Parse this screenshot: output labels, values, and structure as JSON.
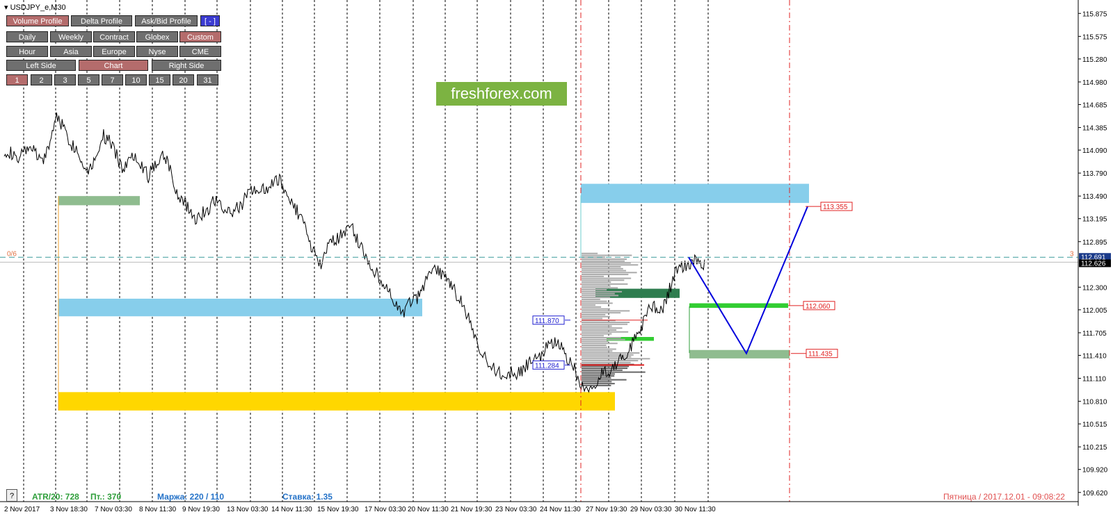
{
  "symbol": "USDJPY_e,M30",
  "toolbar": {
    "row1": [
      {
        "label": "Volume Profile",
        "state": "active"
      },
      {
        "label": "Delta Profile",
        "state": "normal"
      },
      {
        "label": "Ask/Bid Profile",
        "state": "normal"
      },
      {
        "label": "[ - ]",
        "state": "blue"
      }
    ],
    "row2": [
      {
        "label": "Daily",
        "state": "normal"
      },
      {
        "label": "Weekly",
        "state": "normal"
      },
      {
        "label": "Contract",
        "state": "normal"
      },
      {
        "label": "Globex",
        "state": "normal"
      },
      {
        "label": "Custom",
        "state": "active"
      }
    ],
    "row3": [
      {
        "label": "Hour",
        "state": "normal"
      },
      {
        "label": "Asia",
        "state": "normal"
      },
      {
        "label": "Europe",
        "state": "normal"
      },
      {
        "label": "Nyse",
        "state": "normal"
      },
      {
        "label": "CME",
        "state": "normal"
      }
    ],
    "row4": [
      {
        "label": "Left Side",
        "state": "normal"
      },
      {
        "label": "Chart",
        "state": "active"
      },
      {
        "label": "Right Side",
        "state": "normal"
      }
    ],
    "row5": [
      {
        "label": "1",
        "state": "active"
      },
      {
        "label": "2",
        "state": "normal"
      },
      {
        "label": "3",
        "state": "normal"
      },
      {
        "label": "5",
        "state": "normal"
      },
      {
        "label": "7",
        "state": "normal"
      },
      {
        "label": "10",
        "state": "normal"
      },
      {
        "label": "15",
        "state": "normal"
      },
      {
        "label": "20",
        "state": "normal"
      },
      {
        "label": "31",
        "state": "normal"
      }
    ]
  },
  "watermark": "freshforex.com",
  "stats": {
    "atr": "ATR/20: 728",
    "pt": "Пт.: 370",
    "margin": "Маржа: 220 / 110",
    "rate": "Ставка: 1.35"
  },
  "datetime": "Пятница  /  2017.12.01  -  09:08:22",
  "help_label": "?",
  "level_left_label": "0/6",
  "level_right_label": "3",
  "colors": {
    "light_blue_zone": "#87ceeb",
    "yellow_zone": "#ffd700",
    "green_zone": "#8fbc8f",
    "bright_green": "#32cd32",
    "dark_green": "#2e7d4f",
    "red_dash": "#e02020",
    "teal_dash": "#3a9a9a",
    "forecast_line": "#0000dd",
    "axis_text": "#000000"
  },
  "chart_data": {
    "type": "line",
    "title": "USDJPY_e,M30",
    "ylim": [
      109.5,
      116.05
    ],
    "y_ticks": [
      "115.875",
      "115.575",
      "115.280",
      "114.980",
      "114.685",
      "114.385",
      "114.090",
      "113.790",
      "113.490",
      "113.195",
      "112.895",
      "112.300",
      "112.005",
      "111.705",
      "111.410",
      "111.110",
      "110.810",
      "110.515",
      "110.215",
      "109.920",
      "109.620"
    ],
    "x_ticks": [
      "2 Nov 2017",
      "3 Nov 18:30",
      "7 Nov 03:30",
      "8 Nov 11:30",
      "9 Nov 19:30",
      "13 Nov 03:30",
      "14 Nov 11:30",
      "15 Nov 19:30",
      "17 Nov 03:30",
      "20 Nov 11:30",
      "21 Nov 19:30",
      "23 Nov 03:30",
      "24 Nov 11:30",
      "27 Nov 19:30",
      "29 Nov 03:30",
      "30 Nov 11:30"
    ],
    "price_series": {
      "name": "USDJPY",
      "close": [
        114.1,
        114.05,
        113.95,
        114.05,
        114.15,
        114.0,
        113.95,
        114.2,
        114.55,
        114.4,
        114.2,
        114.1,
        113.9,
        113.85,
        114.0,
        114.3,
        114.2,
        114.05,
        113.85,
        113.95,
        114.05,
        113.9,
        113.75,
        113.9,
        114.05,
        113.95,
        113.6,
        113.45,
        113.35,
        113.2,
        113.25,
        113.3,
        113.45,
        113.4,
        113.25,
        113.3,
        113.35,
        113.5,
        113.6,
        113.55,
        113.6,
        113.65,
        113.7,
        113.55,
        113.4,
        113.25,
        113.1,
        112.8,
        112.55,
        112.75,
        112.9,
        112.95,
        113.05,
        113.1,
        112.9,
        112.75,
        112.55,
        112.45,
        112.35,
        112.2,
        112.0,
        111.95,
        112.1,
        112.15,
        112.3,
        112.5,
        112.55,
        112.45,
        112.35,
        112.2,
        112.05,
        111.85,
        111.6,
        111.45,
        111.3,
        111.2,
        111.15,
        111.2,
        111.15,
        111.2,
        111.3,
        111.35,
        111.4,
        111.55,
        111.6,
        111.5,
        111.35,
        111.25,
        111.0,
        110.95,
        111.05,
        111.15,
        111.2,
        111.25,
        111.35,
        111.45,
        111.6,
        111.75,
        111.95,
        112.05,
        111.95,
        112.15,
        112.4,
        112.6,
        112.55,
        112.65,
        112.6
      ]
    },
    "current_price": 112.626,
    "bid_line": 112.691,
    "level_dashed": 112.691,
    "price_labels": [
      {
        "value": 113.355,
        "text": "113.355",
        "color": "red"
      },
      {
        "value": 112.06,
        "text": "112.060",
        "color": "red"
      },
      {
        "value": 111.435,
        "text": "111.435",
        "color": "red"
      },
      {
        "value": 111.87,
        "text": "111.870",
        "color": "blue"
      },
      {
        "value": 111.284,
        "text": "111.284",
        "color": "blue"
      }
    ],
    "zones": [
      {
        "name": "green-zone-top-left",
        "x_start": "3 Nov 18:30",
        "x_end": "8 Nov 11:30",
        "y_top": 113.49,
        "y_bottom": 113.37,
        "color": "#8fbc8f"
      },
      {
        "name": "blue-zone-left",
        "x_start": "3 Nov 18:30",
        "x_end": "20 Nov 11:30",
        "y_top": 112.15,
        "y_bottom": 111.92,
        "color": "#87ceeb"
      },
      {
        "name": "yellow-zone",
        "x_start": "3 Nov 18:30",
        "x_end": "27 Nov 19:30",
        "y_top": 110.93,
        "y_bottom": 110.69,
        "color": "#ffd700"
      },
      {
        "name": "blue-zone-right",
        "x_start": "27 Nov",
        "x_end": "forecast",
        "y_top": 113.65,
        "y_bottom": 113.4,
        "color": "#87ceeb"
      },
      {
        "name": "bright-green-zone-right",
        "x_start": "30 Nov 11:30",
        "x_end": "forecast",
        "y_top": 112.09,
        "y_bottom": 112.03,
        "color": "#32cd32"
      },
      {
        "name": "green-zone-right",
        "x_start": "30 Nov 11:30",
        "x_end": "forecast",
        "y_top": 111.48,
        "y_bottom": 111.37,
        "color": "#8fbc8f"
      },
      {
        "name": "dark-green-poc",
        "x_start": "27 Nov",
        "x_end": "30 Nov 11:30",
        "y_top": 112.28,
        "y_bottom": 112.16,
        "color": "#2e7d4f"
      },
      {
        "name": "bright-green-small",
        "x_start": "27 Nov 19:30",
        "x_end": "29 Nov 03:30",
        "y_top": 111.65,
        "y_bottom": 111.6,
        "color": "#32cd32"
      }
    ],
    "forecast_path": [
      112.691,
      111.435,
      113.355
    ],
    "grid": true,
    "legend": "none"
  }
}
